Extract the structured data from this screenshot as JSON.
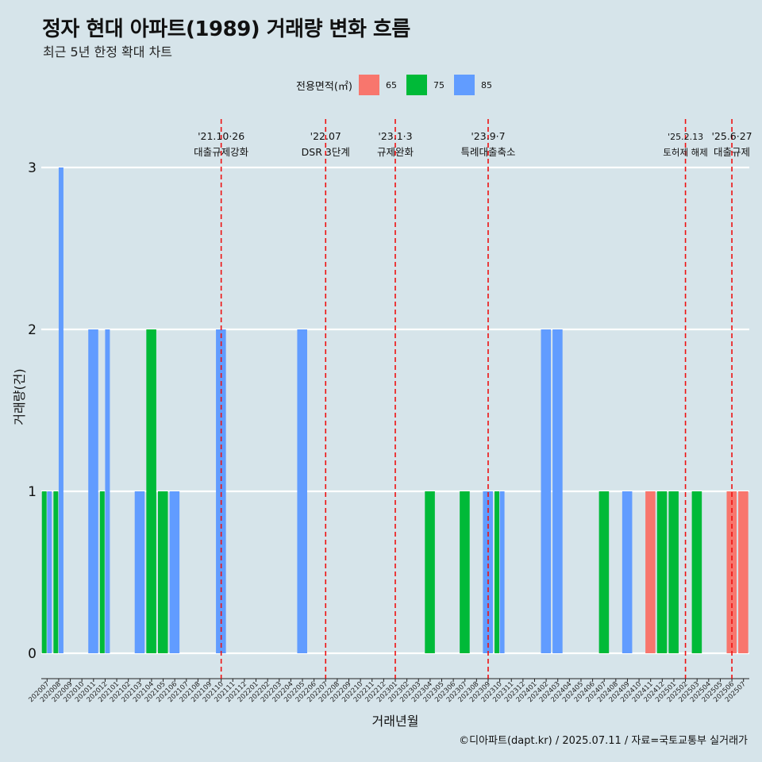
{
  "title": "정자 현대 아파트(1989) 거래량 변화 흐름",
  "subtitle": "최근 5년 한정 확대 차트",
  "caption": "©디아파트(dapt.kr) / 2025.07.11 / 자료=국토교통부 실거래가",
  "legend": {
    "title": "전용면적(㎡)",
    "items": [
      {
        "label": "65",
        "color": "#f8766d"
      },
      {
        "label": "75",
        "color": "#00ba38"
      },
      {
        "label": "85",
        "color": "#619cff"
      }
    ]
  },
  "chart_data": {
    "type": "bar",
    "xlabel": "거래년월",
    "ylabel": "거래량(건)",
    "ylim": [
      0,
      3
    ],
    "yticks": [
      "0",
      "1",
      "2",
      "3"
    ],
    "grid": true,
    "categories": [
      "202007",
      "202008",
      "202009",
      "202010",
      "202011",
      "202012",
      "202101",
      "202102",
      "202103",
      "202104",
      "202105",
      "202106",
      "202107",
      "202108",
      "202109",
      "202110",
      "202111",
      "202112",
      "202201",
      "202202",
      "202203",
      "202204",
      "202205",
      "202206",
      "202207",
      "202208",
      "202209",
      "202210",
      "202211",
      "202212",
      "202301",
      "202302",
      "202303",
      "202304",
      "202305",
      "202306",
      "202307",
      "202308",
      "202309",
      "202310",
      "202311",
      "202312",
      "202401",
      "202402",
      "202403",
      "202404",
      "202405",
      "202406",
      "202407",
      "202408",
      "202409",
      "202410",
      "202411",
      "202412",
      "202501",
      "202502",
      "202503",
      "202504",
      "202505",
      "202506",
      "202507"
    ],
    "series": [
      {
        "name": "65",
        "color": "#f8766d",
        "values": [
          0,
          0,
          0,
          0,
          0,
          0,
          0,
          0,
          0,
          0,
          0,
          0,
          0,
          0,
          0,
          0,
          0,
          0,
          0,
          0,
          0,
          0,
          0,
          0,
          0,
          0,
          0,
          0,
          0,
          0,
          0,
          0,
          0,
          0,
          0,
          0,
          0,
          0,
          0,
          0,
          0,
          0,
          0,
          0,
          0,
          0,
          0,
          0,
          0,
          0,
          0,
          0,
          1,
          0,
          0,
          0,
          0,
          0,
          0,
          1,
          1
        ]
      },
      {
        "name": "75",
        "color": "#00ba38",
        "values": [
          1,
          1,
          0,
          0,
          0,
          1,
          0,
          0,
          0,
          2,
          1,
          0,
          0,
          0,
          0,
          0,
          0,
          0,
          0,
          0,
          0,
          0,
          0,
          0,
          0,
          0,
          0,
          0,
          0,
          0,
          0,
          0,
          0,
          1,
          0,
          0,
          1,
          0,
          0,
          1,
          0,
          0,
          0,
          0,
          0,
          0,
          0,
          0,
          1,
          0,
          0,
          0,
          0,
          1,
          1,
          0,
          1,
          0,
          0,
          0,
          0
        ]
      },
      {
        "name": "85",
        "color": "#619cff",
        "values": [
          1,
          3,
          0,
          0,
          2,
          2,
          0,
          0,
          1,
          0,
          0,
          1,
          0,
          0,
          0,
          2,
          0,
          0,
          0,
          0,
          0,
          0,
          2,
          0,
          0,
          0,
          0,
          0,
          0,
          0,
          0,
          0,
          0,
          0,
          0,
          0,
          0,
          0,
          1,
          1,
          0,
          0,
          0,
          2,
          2,
          0,
          0,
          0,
          0,
          0,
          1,
          0,
          0,
          0,
          0,
          0,
          0,
          0,
          0,
          0,
          0
        ]
      }
    ],
    "annotations": [
      {
        "date": "'21.10·26",
        "label": "대출규제강화",
        "x": "202110"
      },
      {
        "date": "'22.07",
        "label": "DSR 3단계",
        "x": "202207"
      },
      {
        "date": "'23.1·3",
        "label": "규제완화",
        "x": "202301"
      },
      {
        "date": "'23.9·7",
        "label": "특례대출축소",
        "x": "202309"
      },
      {
        "date": "'25.2.13",
        "label": "토허제 해제",
        "x": "202502"
      },
      {
        "date": "'25.6·27",
        "label": "대출규제",
        "x": "202506"
      }
    ]
  }
}
